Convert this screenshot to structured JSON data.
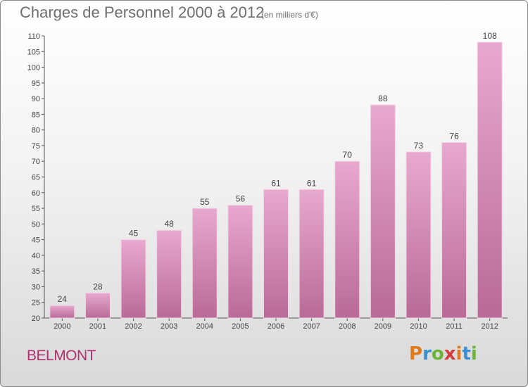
{
  "header": {
    "title": "Charges de Personnel 2000 à 2012",
    "subtitle": "(en milliers d'€)"
  },
  "footer": {
    "commune": "BELMONT",
    "logo_letters": [
      "P",
      "r",
      "o",
      "x",
      "i",
      "t",
      "i"
    ],
    "logo_colors": [
      "#e07a1f",
      "#3a8fd0",
      "#6bb33a",
      "#d23b3b",
      "#e07a1f",
      "#3a8fd0",
      "#6bb33a"
    ]
  },
  "chart_data": {
    "type": "bar",
    "title": "Charges de Personnel 2000 à 2012",
    "subtitle": "(en milliers d'€)",
    "xlabel": "",
    "ylabel": "",
    "categories": [
      "2000",
      "2001",
      "2002",
      "2003",
      "2004",
      "2005",
      "2006",
      "2007",
      "2008",
      "2009",
      "2010",
      "2011",
      "2012"
    ],
    "values": [
      24,
      28,
      45,
      48,
      55,
      56,
      61,
      61,
      70,
      88,
      73,
      76,
      108
    ],
    "ylim": [
      20,
      110
    ],
    "yticks": [
      20,
      25,
      30,
      35,
      40,
      45,
      50,
      55,
      60,
      65,
      70,
      75,
      80,
      85,
      90,
      95,
      100,
      105,
      110
    ],
    "grid": false,
    "legend": "none",
    "bar_color": "#d98ab7"
  }
}
